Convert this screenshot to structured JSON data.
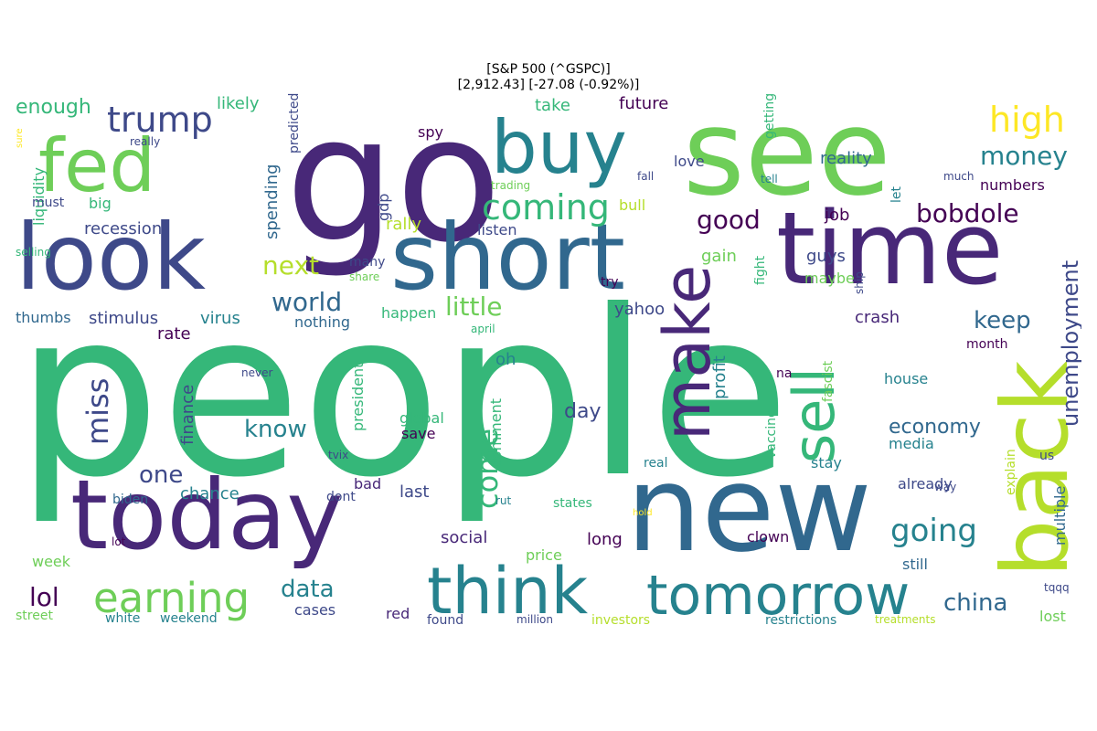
{
  "title": {
    "line1": "[S&P 500 (^GSPC)]",
    "line2": "[2,912.43]  [-27.08 (-0.92%)]"
  },
  "palette": [
    "#440154",
    "#482878",
    "#3e4989",
    "#31688e",
    "#26828e",
    "#1f9e89",
    "#35b779",
    "#6ece58",
    "#b5de2b",
    "#fde725"
  ],
  "words": [
    {
      "t": "people",
      "c": "#35b779"
    },
    {
      "t": "go",
      "c": "#482878"
    },
    {
      "t": "see",
      "c": "#6ece58"
    },
    {
      "t": "new",
      "c": "#31688e"
    },
    {
      "t": "time",
      "c": "#482878"
    },
    {
      "t": "today",
      "c": "#482878"
    },
    {
      "t": "look",
      "c": "#3e4989"
    },
    {
      "t": "short",
      "c": "#31688e"
    },
    {
      "t": "buy",
      "c": "#26828e"
    },
    {
      "t": "fed",
      "c": "#6ece58"
    },
    {
      "t": "back",
      "c": "#b5de2b"
    },
    {
      "t": "make",
      "c": "#482878"
    },
    {
      "t": "sell",
      "c": "#35b779"
    },
    {
      "t": "think",
      "c": "#26828e"
    },
    {
      "t": "tomorrow",
      "c": "#26828e"
    },
    {
      "t": "earning",
      "c": "#6ece58"
    },
    {
      "t": "coming",
      "c": "#35b779"
    },
    {
      "t": "trump",
      "c": "#3e4989"
    },
    {
      "t": "high",
      "c": "#fde725"
    },
    {
      "t": "money",
      "c": "#26828e"
    },
    {
      "t": "bobdole",
      "c": "#440154"
    },
    {
      "t": "good",
      "c": "#440154"
    },
    {
      "t": "going",
      "c": "#26828e"
    },
    {
      "t": "next",
      "c": "#b5de2b"
    },
    {
      "t": "world",
      "c": "#31688e"
    },
    {
      "t": "little",
      "c": "#6ece58"
    },
    {
      "t": "keep",
      "c": "#31688e"
    },
    {
      "t": "china",
      "c": "#31688e"
    },
    {
      "t": "data",
      "c": "#26828e"
    },
    {
      "t": "lol",
      "c": "#440154"
    },
    {
      "t": "miss",
      "c": "#3e4989"
    },
    {
      "t": "one",
      "c": "#3e4989"
    },
    {
      "t": "know",
      "c": "#26828e"
    },
    {
      "t": "come",
      "c": "#35b779"
    },
    {
      "t": "economy",
      "c": "#31688e"
    },
    {
      "t": "unemployment",
      "c": "#3e4989"
    },
    {
      "t": "enough",
      "c": "#35b779"
    },
    {
      "t": "recession",
      "c": "#3e4989"
    },
    {
      "t": "stimulus",
      "c": "#3e4989"
    },
    {
      "t": "virus",
      "c": "#26828e"
    },
    {
      "t": "rate",
      "c": "#440154"
    },
    {
      "t": "likely",
      "c": "#35b779"
    },
    {
      "t": "future",
      "c": "#440154"
    },
    {
      "t": "take",
      "c": "#35b779"
    },
    {
      "t": "reality",
      "c": "#31688e"
    },
    {
      "t": "love",
      "c": "#3e4989"
    },
    {
      "t": "numbers",
      "c": "#440154"
    },
    {
      "t": "job",
      "c": "#440154"
    },
    {
      "t": "gain",
      "c": "#6ece58"
    },
    {
      "t": "guys",
      "c": "#3e4989"
    },
    {
      "t": "maybe",
      "c": "#6ece58"
    },
    {
      "t": "crash",
      "c": "#482878"
    },
    {
      "t": "yahoo",
      "c": "#3e4989"
    },
    {
      "t": "happen",
      "c": "#35b779"
    },
    {
      "t": "nothing",
      "c": "#31688e"
    },
    {
      "t": "rally",
      "c": "#b5de2b"
    },
    {
      "t": "listen",
      "c": "#3e4989"
    },
    {
      "t": "bull",
      "c": "#b5de2b"
    },
    {
      "t": "spy",
      "c": "#440154"
    },
    {
      "t": "gdp",
      "c": "#3e4989"
    },
    {
      "t": "spending",
      "c": "#31688e"
    },
    {
      "t": "liquidity",
      "c": "#35b779"
    },
    {
      "t": "big",
      "c": "#35b779"
    },
    {
      "t": "thumbs",
      "c": "#31688e"
    },
    {
      "t": "finance",
      "c": "#3e4989"
    },
    {
      "t": "president",
      "c": "#35b779"
    },
    {
      "t": "global",
      "c": "#35b779"
    },
    {
      "t": "save",
      "c": "#440154"
    },
    {
      "t": "day",
      "c": "#3e4989"
    },
    {
      "t": "oh",
      "c": "#26828e"
    },
    {
      "t": "comment",
      "c": "#35b779"
    },
    {
      "t": "profit",
      "c": "#26828e"
    },
    {
      "t": "month",
      "c": "#440154"
    },
    {
      "t": "house",
      "c": "#26828e"
    },
    {
      "t": "media",
      "c": "#26828e"
    },
    {
      "t": "stay",
      "c": "#26828e"
    },
    {
      "t": "already",
      "c": "#3e4989"
    },
    {
      "t": "explain",
      "c": "#b5de2b"
    },
    {
      "t": "multiple",
      "c": "#31688e"
    },
    {
      "t": "us",
      "c": "#3e4989"
    },
    {
      "t": "lost",
      "c": "#6ece58"
    },
    {
      "t": "still",
      "c": "#31688e"
    },
    {
      "t": "clown",
      "c": "#440154"
    },
    {
      "t": "week",
      "c": "#6ece58"
    },
    {
      "t": "bad",
      "c": "#482878"
    },
    {
      "t": "chance",
      "c": "#26828e"
    },
    {
      "t": "dont",
      "c": "#3e4989"
    },
    {
      "t": "last",
      "c": "#3e4989"
    },
    {
      "t": "social",
      "c": "#482878"
    },
    {
      "t": "long",
      "c": "#440154"
    },
    {
      "t": "states",
      "c": "#35b779"
    },
    {
      "t": "price",
      "c": "#6ece58"
    },
    {
      "t": "street",
      "c": "#6ece58"
    },
    {
      "t": "white",
      "c": "#26828e"
    },
    {
      "t": "weekend",
      "c": "#26828e"
    },
    {
      "t": "cases",
      "c": "#3e4989"
    },
    {
      "t": "red",
      "c": "#482878"
    },
    {
      "t": "found",
      "c": "#3e4989"
    },
    {
      "t": "million",
      "c": "#3e4989"
    },
    {
      "t": "investors",
      "c": "#b5de2b"
    },
    {
      "t": "restrictions",
      "c": "#26828e"
    },
    {
      "t": "treatments",
      "c": "#b5de2b"
    },
    {
      "t": "real",
      "c": "#26828e"
    },
    {
      "t": "biden",
      "c": "#31688e"
    },
    {
      "t": "tvix",
      "c": "#3e4989"
    },
    {
      "t": "vaccine",
      "c": "#35b779"
    },
    {
      "t": "fascist",
      "c": "#6ece58"
    },
    {
      "t": "fight",
      "c": "#35b779"
    },
    {
      "t": "na",
      "c": "#440154"
    },
    {
      "t": "let",
      "c": "#26828e"
    },
    {
      "t": "getting",
      "c": "#35b779"
    },
    {
      "t": "trading",
      "c": "#6ece58"
    },
    {
      "t": "try",
      "c": "#440154"
    },
    {
      "t": "many",
      "c": "#3e4989"
    },
    {
      "t": "share",
      "c": "#6ece58"
    },
    {
      "t": "predicted",
      "c": "#3e4989"
    },
    {
      "t": "really",
      "c": "#3e4989"
    },
    {
      "t": "never",
      "c": "#3e4989"
    },
    {
      "t": "april",
      "c": "#35b779"
    },
    {
      "t": "selling",
      "c": "#35b779"
    },
    {
      "t": "tell",
      "c": "#26828e"
    },
    {
      "t": "fall",
      "c": "#3e4989"
    },
    {
      "t": "ship",
      "c": "#3e4989"
    },
    {
      "t": "tqqq",
      "c": "#3e4989"
    },
    {
      "t": "much",
      "c": "#3e4989"
    },
    {
      "t": "way",
      "c": "#3e4989"
    },
    {
      "t": "sure",
      "c": "#fde725"
    },
    {
      "t": "must",
      "c": "#3e4989"
    },
    {
      "t": "rut",
      "c": "#26828e"
    },
    {
      "t": "lot",
      "c": "#440154"
    },
    {
      "t": "hold",
      "c": "#fde725"
    },
    {
      "t": "nearly",
      "c": "#3e4989"
    }
  ]
}
